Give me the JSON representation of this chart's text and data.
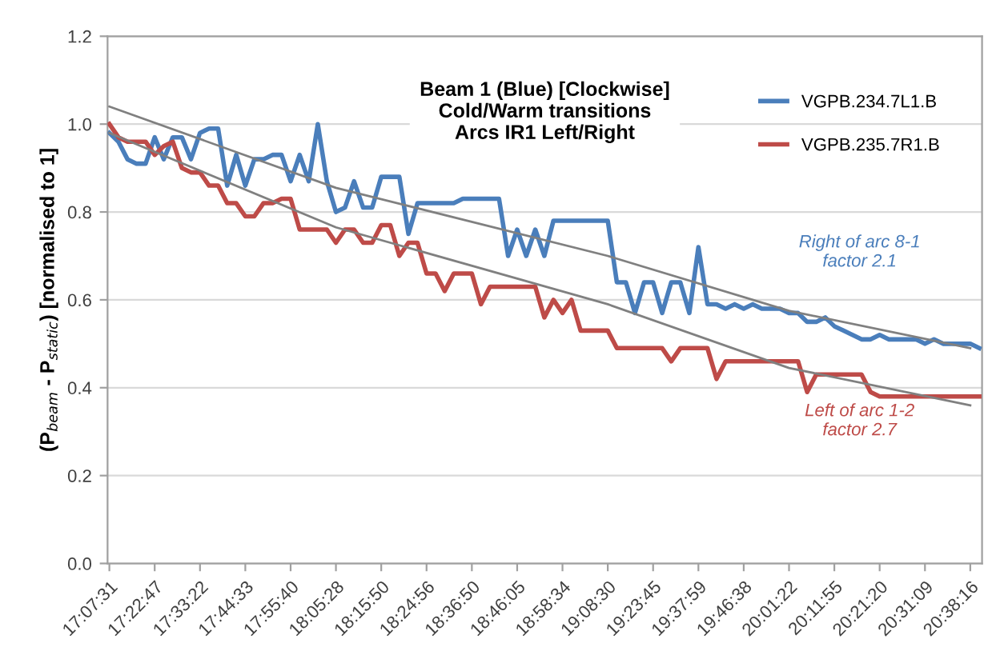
{
  "chart_data": {
    "type": "line",
    "title": "Beam 1 (Blue) [Clockwise]\nCold/Warm transitions\nArcs IR1 Left/Right",
    "ylabel": "(P$_{beam}$ - P$_{static}$) [normalised to 1]",
    "categories": [
      "17:07:31",
      null,
      null,
      null,
      null,
      "17:22:47",
      null,
      null,
      null,
      null,
      "17:33:22",
      null,
      null,
      null,
      null,
      "17:44:33",
      null,
      null,
      null,
      null,
      "17:55:40",
      null,
      null,
      null,
      null,
      "18:05:28",
      null,
      null,
      null,
      null,
      "18:15:50",
      null,
      null,
      null,
      null,
      "18:24:56",
      null,
      null,
      null,
      null,
      "18:36:50",
      null,
      null,
      null,
      null,
      "18:46:05",
      null,
      null,
      null,
      null,
      "18:58:34",
      null,
      null,
      null,
      null,
      "19:08:30",
      null,
      null,
      null,
      null,
      "19:23:45",
      null,
      null,
      null,
      null,
      "19:37:59",
      null,
      null,
      null,
      null,
      "19:46:38",
      null,
      null,
      null,
      null,
      "20:01:22",
      null,
      null,
      null,
      null,
      "20:11:55",
      null,
      null,
      null,
      null,
      "20:21:20",
      null,
      null,
      null,
      null,
      "20:31:09",
      null,
      null,
      null,
      null,
      "20:38:16",
      null
    ],
    "series": [
      {
        "name": "VGPB.234.7L1.B",
        "color": "#4a7ebb",
        "values": [
          0.98,
          0.96,
          0.92,
          0.91,
          0.91,
          0.97,
          0.92,
          0.97,
          0.97,
          0.92,
          0.98,
          0.99,
          0.99,
          0.86,
          0.93,
          0.86,
          0.92,
          0.92,
          0.93,
          0.93,
          0.87,
          0.93,
          0.87,
          1.0,
          0.87,
          0.8,
          0.81,
          0.87,
          0.81,
          0.81,
          0.88,
          0.88,
          0.88,
          0.75,
          0.82,
          0.82,
          0.82,
          0.82,
          0.82,
          0.83,
          0.83,
          0.83,
          0.83,
          0.83,
          0.7,
          0.76,
          0.7,
          0.76,
          0.7,
          0.78,
          0.78,
          0.78,
          0.78,
          0.78,
          0.78,
          0.78,
          0.64,
          0.64,
          0.57,
          0.64,
          0.64,
          0.57,
          0.64,
          0.64,
          0.57,
          0.72,
          0.59,
          0.59,
          0.58,
          0.59,
          0.58,
          0.59,
          0.58,
          0.58,
          0.58,
          0.57,
          0.57,
          0.55,
          0.55,
          0.56,
          0.54,
          0.53,
          0.52,
          0.51,
          0.51,
          0.52,
          0.51,
          0.51,
          0.51,
          0.51,
          0.5,
          0.51,
          0.5,
          0.5,
          0.5,
          0.5,
          0.49
        ]
      },
      {
        "name": "VGPB.235.7R1.B",
        "color": "#be4b48",
        "values": [
          1.0,
          0.97,
          0.96,
          0.96,
          0.96,
          0.93,
          0.95,
          0.96,
          0.9,
          0.89,
          0.89,
          0.86,
          0.86,
          0.82,
          0.82,
          0.79,
          0.79,
          0.82,
          0.82,
          0.83,
          0.83,
          0.76,
          0.76,
          0.76,
          0.76,
          0.73,
          0.76,
          0.76,
          0.73,
          0.73,
          0.77,
          0.77,
          0.7,
          0.73,
          0.73,
          0.66,
          0.66,
          0.62,
          0.66,
          0.66,
          0.66,
          0.59,
          0.63,
          0.63,
          0.63,
          0.63,
          0.63,
          0.63,
          0.56,
          0.6,
          0.57,
          0.6,
          0.53,
          0.53,
          0.53,
          0.53,
          0.49,
          0.49,
          0.49,
          0.49,
          0.49,
          0.49,
          0.46,
          0.49,
          0.49,
          0.49,
          0.49,
          0.42,
          0.46,
          0.46,
          0.46,
          0.46,
          0.46,
          0.46,
          0.46,
          0.46,
          0.46,
          0.39,
          0.43,
          0.43,
          0.43,
          0.43,
          0.43,
          0.43,
          0.39,
          0.38,
          0.38,
          0.38,
          0.38,
          0.38,
          0.38,
          0.38,
          0.38,
          0.38,
          0.38,
          0.38,
          0.38
        ]
      },
      {
        "color": "#808080",
        "x": [
          "17:07:31",
          "18:05:28",
          "19:08:30",
          "20:01:22",
          "20:38:16"
        ],
        "values": [
          1.04,
          0.855,
          0.7,
          0.575,
          0.49
        ]
      },
      {
        "color": "#808080",
        "x": [
          "17:07:31",
          "18:05:28",
          "19:08:30",
          "20:01:22",
          "20:38:16"
        ],
        "values": [
          0.98,
          0.765,
          0.59,
          0.445,
          0.36
        ]
      }
    ],
    "ylim": [
      0,
      1.2
    ],
    "yticks": [
      {
        "value": 0,
        "label": "0.0"
      },
      0.2,
      0.4,
      0.6,
      0.8,
      {
        "value": 1,
        "label": "1.0"
      },
      1.2
    ],
    "grid": "y",
    "legend": "top right",
    "marker": "none",
    "line_style": "solid",
    "annotations": [
      "Right of arc 8-1\nfactor 2.1",
      "Left of arc 1-2\nfactor 2.7"
    ]
  }
}
